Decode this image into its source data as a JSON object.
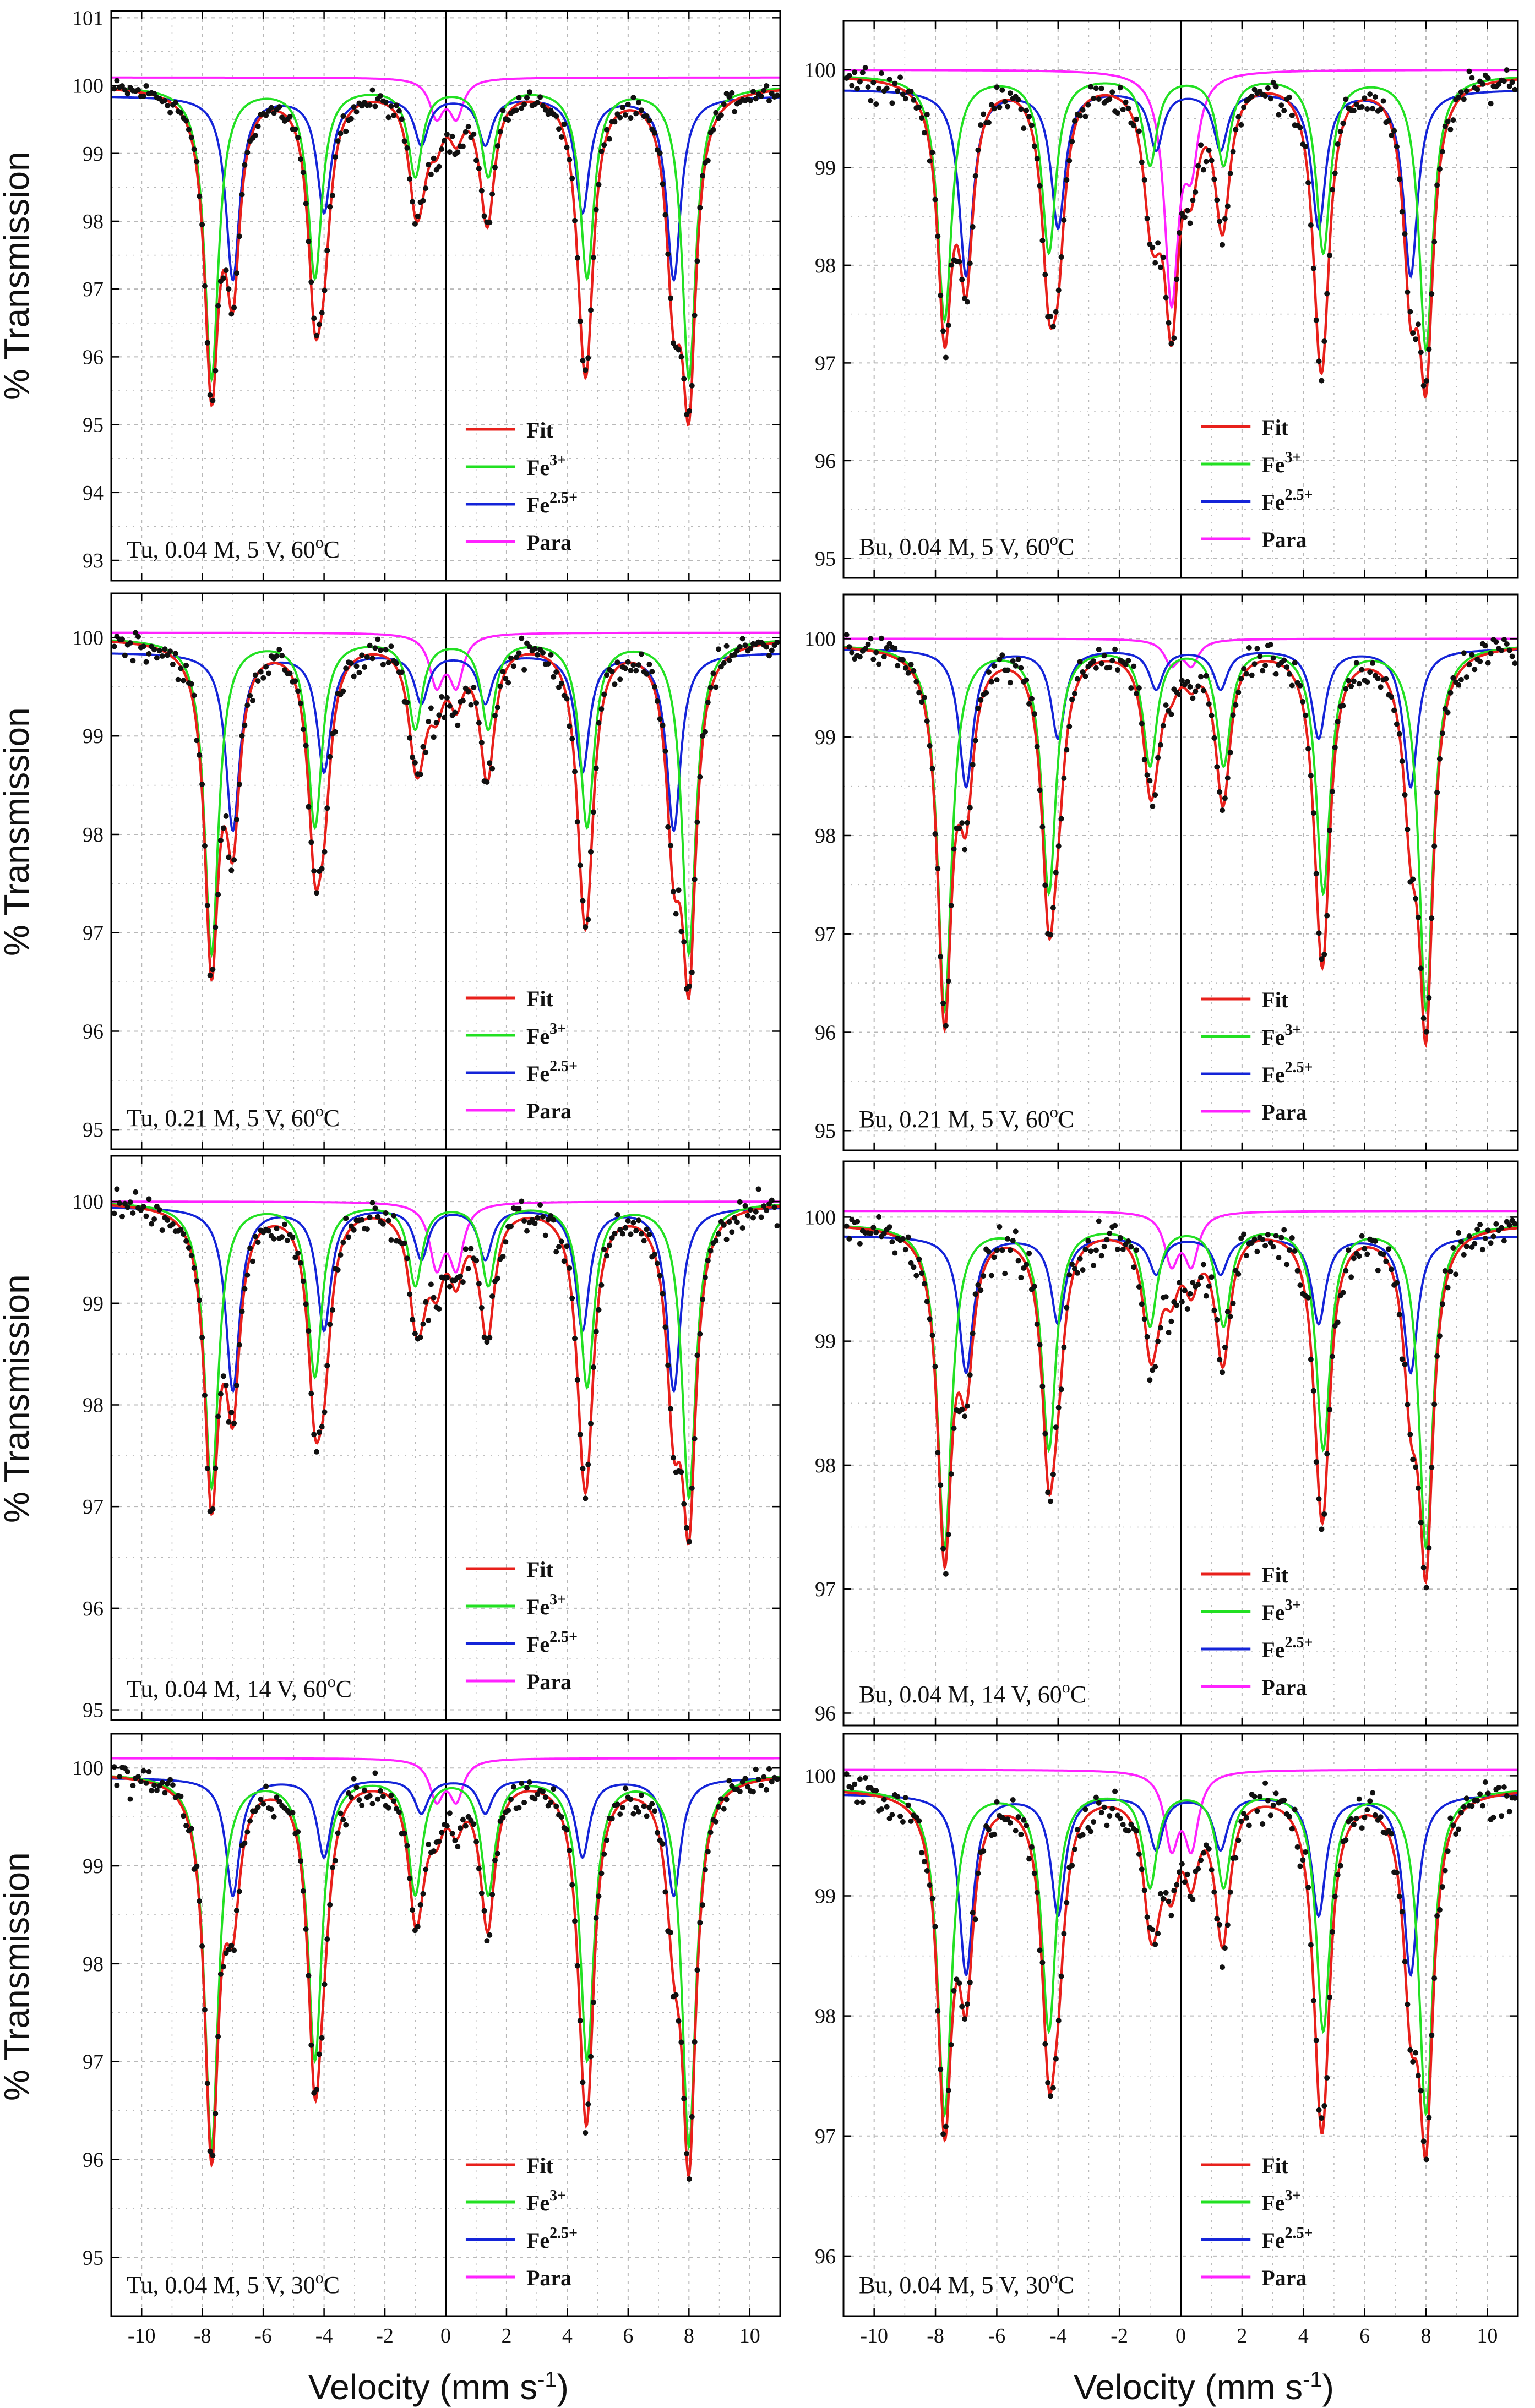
{
  "figure": {
    "ylabel": "% Transmission",
    "xlabel_left": "Velocity (mm s",
    "xlabel_sup": "-1",
    "xlabel_close": ")"
  },
  "colors": {
    "fit": "#e8201b",
    "fe3": "#22e022",
    "fe25": "#1424d8",
    "para": "#ff22ff",
    "data": "#111111",
    "grid": "#b8b8b8"
  },
  "legend": {
    "fit": "Fit",
    "fe3": {
      "base": "Fe",
      "sup": "3+"
    },
    "fe25": {
      "base": "Fe",
      "sup": "2.5+"
    },
    "para": "Para"
  },
  "chart_data": [
    {
      "type": "line",
      "panel": "row1-left",
      "label": "Tu, 0.04 M, 5 V, 60",
      "label_sup": "o",
      "label_unit": "C",
      "xlim": [
        -11,
        11
      ],
      "ylim": [
        92.7,
        101.1
      ],
      "xticks": [
        -10,
        -8,
        -6,
        -4,
        -2,
        0,
        2,
        4,
        6,
        8,
        10
      ],
      "yticks": [
        93,
        94,
        95,
        96,
        97,
        98,
        99,
        100,
        101
      ],
      "xticklabels_visible": false,
      "baseline": {
        "fe3": 100.0,
        "fe25": 99.85,
        "para": 100.12
      },
      "fe3_depths": [
        4.3,
        2.8,
        1.3,
        1.3,
        2.8,
        4.3
      ],
      "fe25_depths": [
        2.7,
        1.7,
        0.7,
        0.7,
        1.7,
        2.7
      ],
      "para_depths": [
        0.55,
        0.55
      ]
    },
    {
      "type": "line",
      "panel": "row1-right",
      "label": "Bu, 0.04 M, 5 V, 60",
      "label_sup": "o",
      "label_unit": "C",
      "xlim": [
        -11,
        11
      ],
      "ylim": [
        94.8,
        100.5
      ],
      "xticks": [
        -10,
        -8,
        -6,
        -4,
        -2,
        0,
        2,
        4,
        6,
        8,
        10
      ],
      "yticks": [
        95,
        96,
        97,
        98,
        99,
        100
      ],
      "xticklabels_visible": false,
      "baseline": {
        "fe3": 99.95,
        "fe25": 99.8,
        "para": 100.0
      },
      "fe3_depths": [
        2.5,
        1.8,
        0.9,
        0.9,
        1.8,
        2.8
      ],
      "fe25_depths": [
        1.9,
        1.4,
        0.6,
        0.6,
        1.4,
        1.9
      ],
      "para_depths": [
        2.3,
        0.8
      ]
    },
    {
      "type": "line",
      "panel": "row2-left",
      "label": "Tu, 0.21 M, 5 V, 60",
      "label_sup": "o",
      "label_unit": "C",
      "xlim": [
        -11,
        11
      ],
      "ylim": [
        94.8,
        100.45
      ],
      "xticks": [
        -10,
        -8,
        -6,
        -4,
        -2,
        0,
        2,
        4,
        6,
        8,
        10
      ],
      "yticks": [
        95,
        96,
        97,
        98,
        99,
        100
      ],
      "xticklabels_visible": false,
      "baseline": {
        "fe3": 100.0,
        "fe25": 99.85,
        "para": 100.05
      },
      "fe3_depths": [
        3.2,
        1.9,
        0.9,
        0.9,
        1.9,
        3.2
      ],
      "fe25_depths": [
        1.8,
        1.2,
        0.5,
        0.5,
        1.2,
        1.8
      ],
      "para_depths": [
        0.5,
        0.5
      ]
    },
    {
      "type": "line",
      "panel": "row2-right",
      "label": "Bu, 0.21 M, 5 V, 60",
      "label_sup": "o",
      "label_unit": "C",
      "xlim": [
        -11,
        11
      ],
      "ylim": [
        94.8,
        100.45
      ],
      "xticks": [
        -10,
        -8,
        -6,
        -4,
        -2,
        0,
        2,
        4,
        6,
        8,
        10
      ],
      "yticks": [
        95,
        96,
        97,
        98,
        99,
        100
      ],
      "xticklabels_visible": false,
      "baseline": {
        "fe3": 99.95,
        "fe25": 99.9,
        "para": 100.0
      },
      "fe3_depths": [
        3.7,
        2.5,
        1.2,
        1.2,
        2.5,
        3.7
      ],
      "fe25_depths": [
        1.4,
        0.9,
        0.4,
        0.4,
        0.9,
        1.4
      ],
      "para_depths": [
        0.25,
        0.25
      ]
    },
    {
      "type": "line",
      "panel": "row3-left",
      "label": "Tu, 0.04 M, 14 V, 60",
      "label_sup": "o",
      "label_unit": "C",
      "xlim": [
        -11,
        11
      ],
      "ylim": [
        94.9,
        100.45
      ],
      "xticks": [
        -10,
        -8,
        -6,
        -4,
        -2,
        0,
        2,
        4,
        6,
        8,
        10
      ],
      "yticks": [
        95,
        96,
        97,
        98,
        99,
        100
      ],
      "xticklabels_visible": false,
      "baseline": {
        "fe3": 100.0,
        "fe25": 99.95,
        "para": 100.0
      },
      "fe3_depths": [
        2.8,
        1.7,
        0.8,
        0.8,
        1.8,
        2.9
      ],
      "fe25_depths": [
        1.8,
        1.2,
        0.5,
        0.5,
        1.2,
        1.8
      ],
      "para_depths": [
        0.6,
        0.6
      ]
    },
    {
      "type": "line",
      "panel": "row3-right",
      "label": "Bu, 0.04 M, 14 V, 60",
      "label_sup": "o",
      "label_unit": "C",
      "xlim": [
        -11,
        11
      ],
      "ylim": [
        95.9,
        100.45
      ],
      "xticks": [
        -10,
        -8,
        -6,
        -4,
        -2,
        0,
        2,
        4,
        6,
        8,
        10
      ],
      "yticks": [
        96,
        97,
        98,
        99,
        100
      ],
      "xticklabels_visible": false,
      "baseline": {
        "fe3": 99.95,
        "fe25": 99.85,
        "para": 100.05
      },
      "fe3_depths": [
        2.6,
        1.8,
        0.8,
        0.8,
        1.8,
        2.6
      ],
      "fe25_depths": [
        1.1,
        0.7,
        0.3,
        0.3,
        0.7,
        1.1
      ],
      "para_depths": [
        0.4,
        0.4
      ]
    },
    {
      "type": "line",
      "panel": "row4-left",
      "label": "Tu, 0.04 M, 5 V, 30",
      "label_sup": "o",
      "label_unit": "C",
      "xlim": [
        -11,
        11
      ],
      "ylim": [
        94.4,
        100.35
      ],
      "xticks": [
        -10,
        -8,
        -6,
        -4,
        -2,
        0,
        2,
        4,
        6,
        8,
        10
      ],
      "yticks": [
        95,
        96,
        97,
        98,
        99,
        100
      ],
      "xticklabels_visible": true,
      "baseline": {
        "fe3": 99.95,
        "fe25": 99.9,
        "para": 100.1
      },
      "fe3_depths": [
        3.8,
        2.9,
        1.2,
        1.2,
        2.9,
        3.8
      ],
      "fe25_depths": [
        1.2,
        0.8,
        0.35,
        0.35,
        0.8,
        1.2
      ],
      "para_depths": [
        0.4,
        0.4
      ]
    },
    {
      "type": "line",
      "panel": "row4-right",
      "label": "Bu, 0.04 M, 5 V, 30",
      "label_sup": "o",
      "label_unit": "C",
      "xlim": [
        -11,
        11
      ],
      "ylim": [
        95.5,
        100.35
      ],
      "xticks": [
        -10,
        -8,
        -6,
        -4,
        -2,
        0,
        2,
        4,
        6,
        8,
        10
      ],
      "yticks": [
        96,
        97,
        98,
        99,
        100
      ],
      "xticklabels_visible": true,
      "baseline": {
        "fe3": 99.9,
        "fe25": 99.85,
        "para": 100.05
      },
      "fe3_depths": [
        2.7,
        2.0,
        0.8,
        0.8,
        2.0,
        2.7
      ],
      "fe25_depths": [
        1.5,
        1.0,
        0.45,
        0.45,
        1.0,
        1.5
      ],
      "para_depths": [
        0.6,
        0.6
      ]
    }
  ],
  "line_positions": {
    "fe3": [
      -7.7,
      -4.3,
      -1.0,
      1.4,
      4.65,
      8.0
    ],
    "fe25": [
      -7.0,
      -4.0,
      -0.8,
      1.3,
      4.5,
      7.5
    ],
    "para": [
      -0.3,
      0.35
    ]
  }
}
